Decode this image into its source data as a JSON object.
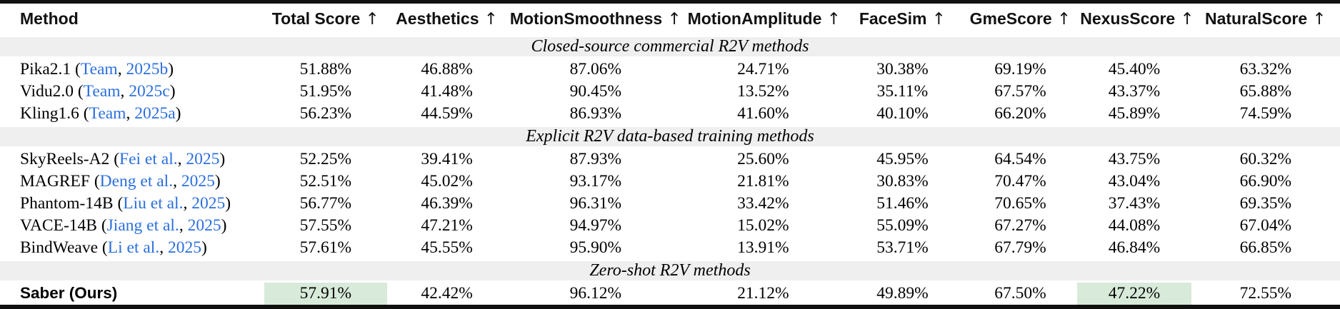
{
  "colors": {
    "highlight_green": "#d8ead9",
    "section_band_gray": "#efefef",
    "citation_blue": "#2b6fdf",
    "rule_black": "#101010"
  },
  "table": {
    "columns": [
      {
        "label": "Method",
        "arrow": false,
        "width": "19.7%",
        "align": "left"
      },
      {
        "label": "Total Score",
        "arrow": true,
        "width": "9.2%"
      },
      {
        "label": "Aesthetics",
        "arrow": true,
        "width": "8.9%"
      },
      {
        "label": "MotionSmoothness",
        "arrow": true,
        "width": "13.3%"
      },
      {
        "label": "MotionAmplitude",
        "arrow": true,
        "width": "11.7%"
      },
      {
        "label": "FaceSim",
        "arrow": true,
        "width": "9.1%"
      },
      {
        "label": "GmeScore",
        "arrow": true,
        "width": "8.5%"
      },
      {
        "label": "NexusScore",
        "arrow": true,
        "width": "8.5%"
      },
      {
        "label": "NaturalScore",
        "arrow": true,
        "width": "11.1%"
      }
    ],
    "arrow_glyph": "↑",
    "sections": [
      {
        "header": "Closed-source commercial R2V methods",
        "rows": [
          {
            "method": "Pika2.1",
            "cite_name": "Team",
            "cite_year": "2025b",
            "bold": false,
            "highlight": [],
            "values": [
              "51.88%",
              "46.88%",
              "87.06%",
              "24.71%",
              "30.38%",
              "69.19%",
              "45.40%",
              "63.32%"
            ]
          },
          {
            "method": "Vidu2.0",
            "cite_name": "Team",
            "cite_year": "2025c",
            "bold": false,
            "highlight": [],
            "values": [
              "51.95%",
              "41.48%",
              "90.45%",
              "13.52%",
              "35.11%",
              "67.57%",
              "43.37%",
              "65.88%"
            ]
          },
          {
            "method": "Kling1.6",
            "cite_name": "Team",
            "cite_year": "2025a",
            "bold": false,
            "highlight": [],
            "values": [
              "56.23%",
              "44.59%",
              "86.93%",
              "41.60%",
              "40.10%",
              "66.20%",
              "45.89%",
              "74.59%"
            ]
          }
        ]
      },
      {
        "header": "Explicit R2V data-based training methods",
        "rows": [
          {
            "method": "SkyReels-A2",
            "cite_name": "Fei et al.",
            "cite_year": "2025",
            "bold": false,
            "highlight": [],
            "values": [
              "52.25%",
              "39.41%",
              "87.93%",
              "25.60%",
              "45.95%",
              "64.54%",
              "43.75%",
              "60.32%"
            ]
          },
          {
            "method": "MAGREF",
            "cite_name": "Deng et al.",
            "cite_year": "2025",
            "bold": false,
            "highlight": [],
            "values": [
              "52.51%",
              "45.02%",
              "93.17%",
              "21.81%",
              "30.83%",
              "70.47%",
              "43.04%",
              "66.90%"
            ]
          },
          {
            "method": "Phantom-14B",
            "cite_name": "Liu et al.",
            "cite_year": "2025",
            "bold": false,
            "highlight": [],
            "values": [
              "56.77%",
              "46.39%",
              "96.31%",
              "33.42%",
              "51.46%",
              "70.65%",
              "37.43%",
              "69.35%"
            ]
          },
          {
            "method": "VACE-14B",
            "cite_name": "Jiang et al.",
            "cite_year": "2025",
            "bold": false,
            "highlight": [],
            "values": [
              "57.55%",
              "47.21%",
              "94.97%",
              "15.02%",
              "55.09%",
              "67.27%",
              "44.08%",
              "67.04%"
            ]
          },
          {
            "method": "BindWeave",
            "cite_name": "Li et al.",
            "cite_year": "2025",
            "bold": false,
            "highlight": [],
            "values": [
              "57.61%",
              "45.55%",
              "95.90%",
              "13.91%",
              "53.71%",
              "67.79%",
              "46.84%",
              "66.85%"
            ]
          }
        ]
      },
      {
        "header": "Zero-shot R2V methods",
        "rows": [
          {
            "method": "Saber (Ours)",
            "cite_name": null,
            "cite_year": null,
            "bold": true,
            "highlight": [
              0,
              6
            ],
            "values": [
              "57.91%",
              "42.42%",
              "96.12%",
              "21.12%",
              "49.89%",
              "67.50%",
              "47.22%",
              "72.55%"
            ]
          }
        ]
      }
    ]
  }
}
